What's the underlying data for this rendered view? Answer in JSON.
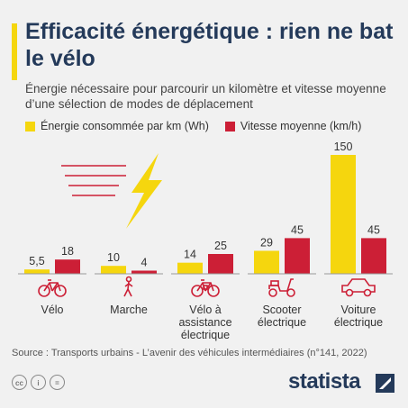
{
  "header": {
    "title": "Efficacité énergétique : rien ne bat le vélo",
    "subtitle": "Énergie nécessaire pour parcourir un kilomètre et vitesse moyenne d’une sélection de modes de déplacement"
  },
  "colors": {
    "accent": "#f5d60e",
    "energy": "#f5d60e",
    "speed": "#cc1f36",
    "title": "#243a5a",
    "icon": "#cc1f36"
  },
  "chart_data": {
    "type": "bar",
    "categories": [
      "Vélo",
      "Marche",
      "Vélo à\nassistance\nélectrique",
      "Scooter\nélectrique",
      "Voiture\nélectrique"
    ],
    "category_icons": [
      "bicycle-icon",
      "walker-icon",
      "ebike-icon",
      "scooter-icon",
      "car-icon"
    ],
    "series": [
      {
        "name": "Énergie consommée par km (Wh)",
        "values": [
          5.5,
          10,
          14,
          29,
          150
        ],
        "labels": [
          "5,5",
          "10",
          "14",
          "29",
          "150"
        ]
      },
      {
        "name": "Vitesse moyenne (km/h)",
        "values": [
          18,
          4,
          25,
          45,
          45
        ],
        "labels": [
          "18",
          "4",
          "25",
          "45",
          "45"
        ]
      }
    ],
    "ylim": [
      0,
      150
    ],
    "grid": false,
    "legend_position": "top-left"
  },
  "footer": {
    "source": "Source : Transports urbains - L’avenir des véhicules intermédiaires (n°141, 2022)",
    "brand": "statista",
    "license_icons": [
      "cc-icon",
      "info-icon",
      "equals-icon"
    ]
  }
}
